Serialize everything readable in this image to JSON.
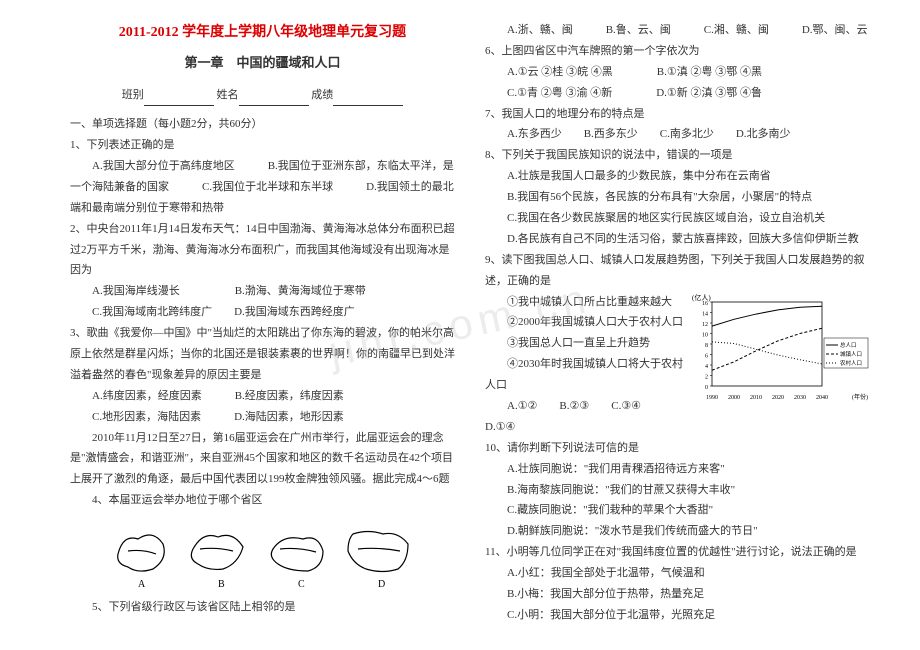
{
  "header": {
    "title": "2011-2012 学年度上学期八年级地理单元复习题",
    "subtitle": "第一章　中国的疆域和人口",
    "form_class": "班别",
    "form_name": "姓名",
    "form_score": "成绩"
  },
  "leftCol": {
    "sec1": "一、单项选择题（每小题2分，共60分）",
    "q1": "1、下列表述正确的是",
    "q1a": "A.我国大部分位于高纬度地区　　　B.我国位于亚洲东部，东临太平洋，是一个海陆兼备的国家　　　C.我国位于北半球和东半球　　　D.我国领土的最北端和最南端分别位于寒带和热带",
    "q2": "2、中央台2011年1月14日发布天气：14日中国渤海、黄海海冰总体分布面积已超过2万平方千米，渤海、黄海海冰分布面积广，而我国其他海域没有出现海冰是因为",
    "q2a": "A.我国海岸线漫长　　　　　B.渤海、黄海海域位于寒带",
    "q2b": "C.我国海域南北跨纬度广　　D.我国海域东西跨经度广",
    "q3": "3、歌曲《我爱你—中国》中\"当灿烂的太阳跳出了你东海的碧波，你的帕米尔高原上依然是群星闪烁；当你的北国还是银装素裹的世界啊！你的南疆早已到处洋溢着盎然的春色\"现象差异的原因主要是",
    "q3a": "A.纬度因素，经度因素　　　B.经度因素，纬度因素",
    "q3b": "C.地形因素，海陆因素　　　D.海陆因素，地形因素",
    "q4intro": "　　2010年11月12日至27日，第16届亚运会在广州市举行，此届亚运会的理念是\"激情盛会，和谐亚洲\"，来自亚洲45个国家和地区的数千名运动员在42个项目上展开了激烈的角逐，最后中国代表团以199枚金牌独领风骚。据此完成4～6题",
    "q4": "4、本届亚运会举办地位于哪个省区",
    "mapLabels": {
      "a": "A",
      "b": "B",
      "c": "C",
      "d": "D"
    },
    "q5": "5、下列省级行政区与该省区陆上相邻的是"
  },
  "rightCol": {
    "q5opts": "A.浙、赣、闽　　　B.鲁、云、闽　　　C.湘、赣、闽　　　D.鄂、闽、云",
    "q6": "6、上图四省区中汽车牌照的第一个字依次为",
    "q6a": "A.①云 ②桂 ③皖 ④黑　　　　B.①滇 ②粤 ③鄂 ④黑",
    "q6b": "C.①青 ②粤 ③渝 ④新　　　　D.①新 ②滇 ③鄂 ④鲁",
    "q7": "7、我国人口的地理分布的特点是",
    "q7opts": "A.东多西少　　B.西多东少　　C.南多北少　　D.北多南少",
    "q8": "8、下列关于我国民族知识的说法中，错误的一项是",
    "q8a": "A.壮族是我国人口最多的少数民族，集中分布在云南省",
    "q8b": "B.我国有56个民族，各民族的分布具有\"大杂居，小聚居\"的特点",
    "q8c": "C.我国在各少数民族聚居的地区实行民族区域自治，设立自治机关",
    "q8d": "D.各民族有自己不同的生活习俗，蒙古族喜摔跤，回族大多信仰伊斯兰教",
    "q9": "9、读下图我国总人口、城镇人口发展趋势图，下列关于我国人口发展趋势的叙述，正确的是",
    "q9_1": "①我中城镇人口所占比重越来越大",
    "q9_2": "②2000年我国城镇人口大于农村人口",
    "q9_3": "③我国总人口一直呈上升趋势",
    "q9_4": "④2030年时我国城镇人口将大于农村人口",
    "q9opts": "A.①②　　B.②③　　C.③④　　D.①④",
    "chart": {
      "ylabel": "(亿人)",
      "xlabel": "(年份)",
      "yticks": [
        0,
        2,
        4,
        6,
        8,
        10,
        12,
        14,
        16
      ],
      "xticks": [
        1990,
        2000,
        2010,
        2020,
        2030,
        2040
      ],
      "line_color": "#000",
      "bg": "#fff",
      "legend": {
        "total": "总人口",
        "urban": "城镇人口",
        "rural": "农村人口"
      },
      "total": [
        11.4,
        12.7,
        13.7,
        14.5,
        15.0,
        15.2
      ],
      "urban": [
        3.0,
        4.6,
        6.7,
        8.6,
        10.0,
        11.0
      ],
      "rural": [
        8.4,
        8.1,
        7.0,
        5.9,
        5.0,
        4.2
      ]
    },
    "q10": "10、请你判断下列说法可信的是",
    "q10a": "A.壮族同胞说：\"我们用青稞酒招待远方来客\"",
    "q10b": "B.海南黎族同胞说：\"我们的甘蔗又获得大丰收\"",
    "q10c": "C.藏族同胞说：\"我们栽种的苹果个大香甜\"",
    "q10d": "D.朝鲜族同胞说：\"泼水节是我们传统而盛大的节日\"",
    "q11": "11、小明等几位同学正在对\"我国纬度位置的优越性\"进行讨论，说法正确的是",
    "q11a": "A.小红：我国全部处于北温带，气候温和",
    "q11b": "B.小梅：我国大部分位于热带，热量充足",
    "q11c": "C.小明：我国大部分位于北温带，光照充足"
  },
  "watermark": "jinr.com.cn"
}
